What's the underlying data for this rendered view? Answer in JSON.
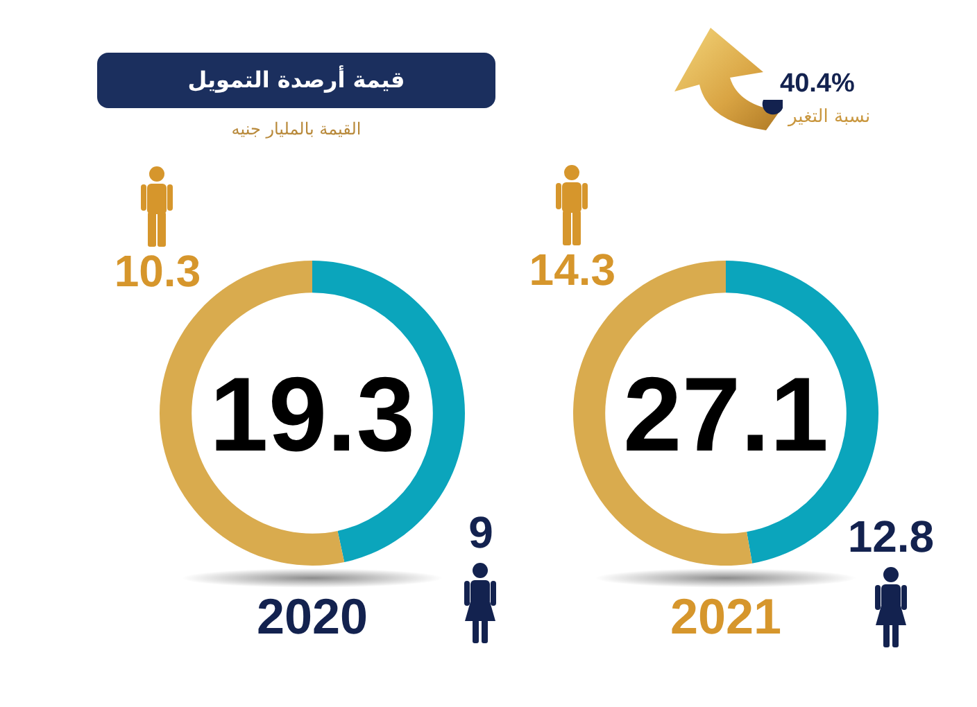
{
  "chart_data": [
    {
      "type": "donut",
      "title": "قيمة أرصدة التمويل",
      "subtitle": "القيمة بالمليار جنيه",
      "xlabel": "2020",
      "categories": [
        null,
        null
      ],
      "values": [
        9,
        10.3
      ],
      "colors": [
        "#0ba5bc",
        "#d9ab4e"
      ],
      "data_labels": true,
      "annotations": [
        "19.3"
      ]
    },
    {
      "type": "donut",
      "xlabel": "2021",
      "categories": [
        null,
        null
      ],
      "values": [
        12.8,
        14.3
      ],
      "colors": [
        "#0ba5bc",
        "#d9ab4e"
      ],
      "data_labels": true,
      "annotations": [
        "27.1",
        "40.4%",
        "نسبة التغير"
      ]
    }
  ]
}
